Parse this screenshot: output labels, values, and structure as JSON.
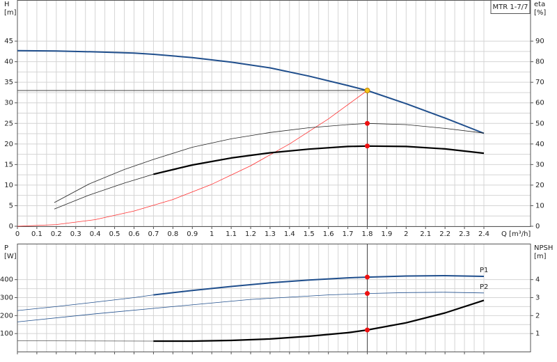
{
  "chart_data": [
    {
      "type": "line",
      "title": "MTR 1-7/7",
      "ylabel": "H",
      "yunit": "[m]",
      "y2label": "eta",
      "y2unit": "[%]",
      "xlabel": "Q [m³/h]",
      "xlim": [
        0,
        2.64
      ],
      "ylim": [
        0,
        55
      ],
      "y2lim": [
        0,
        110
      ],
      "grid": true,
      "xticks": [
        0,
        0.1,
        0.2,
        0.3,
        0.4,
        0.5,
        0.6,
        0.7,
        0.8,
        0.9,
        1,
        1.1,
        1.2,
        1.3,
        1.4,
        1.5,
        1.6,
        1.7,
        1.8,
        1.9,
        2,
        2.1,
        2.2,
        2.3,
        2.4
      ],
      "yticks": [
        0,
        5,
        10,
        15,
        20,
        25,
        30,
        35,
        40,
        45
      ],
      "y2ticks": [
        0,
        10,
        20,
        30,
        40,
        50,
        60,
        70,
        80,
        90
      ],
      "series": [
        {
          "color": "#1f4e8c",
          "width": 2,
          "x": [
            0,
            0.2,
            0.4,
            0.6,
            0.7,
            0.9,
            1.1,
            1.3,
            1.5,
            1.7,
            1.8,
            2.0,
            2.2,
            2.4
          ],
          "values": [
            42.7,
            42.6,
            42.4,
            42.1,
            41.8,
            41.0,
            39.9,
            38.5,
            36.5,
            34.2,
            33,
            29.8,
            26.3,
            22.6
          ]
        },
        {
          "color": "#ff3030",
          "width": 0.8,
          "x": [
            0,
            0.2,
            0.4,
            0.6,
            0.8,
            1.0,
            1.2,
            1.4,
            1.6,
            1.8
          ],
          "values": [
            0,
            0.4,
            1.6,
            3.7,
            6.5,
            10.2,
            14.7,
            20.0,
            26.1,
            33
          ]
        },
        {
          "color": "#222222",
          "width": 0.8,
          "axis": "y2",
          "x": [
            0.19,
            0.37,
            0.55,
            0.7,
            0.9,
            1.1,
            1.3,
            1.5,
            1.7,
            1.8,
            2.0,
            2.2,
            2.4
          ],
          "values": [
            11.5,
            20.6,
            27.6,
            32.5,
            38.4,
            42.5,
            45.6,
            47.9,
            49.4,
            50,
            49.4,
            47.6,
            45.3
          ]
        },
        {
          "color": "#222222",
          "width": 0.8,
          "axis": "y2",
          "x": [
            0.19,
            0.37,
            0.55,
            0.7
          ],
          "values": [
            8.4,
            15.2,
            21,
            25.3
          ]
        },
        {
          "color": "#000000",
          "width": 2.2,
          "axis": "y2",
          "x": [
            0.7,
            0.9,
            1.1,
            1.3,
            1.5,
            1.7,
            1.8,
            2.0,
            2.2,
            2.4
          ],
          "values": [
            25.3,
            29.8,
            33.2,
            35.7,
            37.5,
            38.8,
            39,
            38.8,
            37.6,
            35.5
          ]
        }
      ],
      "points": [
        {
          "x": 1.8,
          "value": 33,
          "color": "#f5c518"
        },
        {
          "x": 1.8,
          "value": 50,
          "axis": "y2",
          "color": "#ee1111"
        },
        {
          "x": 1.8,
          "value": 39,
          "axis": "y2",
          "color": "#ee1111"
        }
      ]
    },
    {
      "type": "line",
      "ylabel": "P",
      "yunit": "[W]",
      "y2label": "NPSH",
      "y2unit": "[m]",
      "xlim": [
        0,
        2.64
      ],
      "ylim": [
        0,
        600
      ],
      "y2lim": [
        0,
        6
      ],
      "grid": true,
      "xticks": [
        0,
        0.1,
        0.2,
        0.3,
        0.4,
        0.5,
        0.6,
        0.7,
        0.8,
        0.9,
        1,
        1.1,
        1.2,
        1.3,
        1.4,
        1.5,
        1.6,
        1.7,
        1.8,
        1.9,
        2,
        2.1,
        2.2,
        2.3,
        2.4
      ],
      "yticks": [
        100,
        200,
        300,
        400
      ],
      "y2ticks": [
        1,
        2,
        3,
        4
      ],
      "series": [
        {
          "color": "#1f4e8c",
          "width": 0.8,
          "x": [
            0,
            0.2,
            0.4,
            0.6,
            0.7
          ],
          "values": [
            228,
            250,
            275,
            300,
            315
          ]
        },
        {
          "name": "P1",
          "color": "#1f4e8c",
          "width": 2,
          "x": [
            0.7,
            0.9,
            1.1,
            1.3,
            1.5,
            1.7,
            1.8,
            2.0,
            2.2,
            2.4
          ],
          "values": [
            315,
            340,
            362,
            382,
            398,
            410,
            414,
            420,
            422,
            418
          ]
        },
        {
          "name": "P2",
          "color": "#1f4e8c",
          "width": 0.8,
          "x": [
            0,
            0.4,
            0.8,
            1.2,
            1.6,
            1.8,
            2.0,
            2.2,
            2.4
          ],
          "values": [
            165,
            210,
            250,
            290,
            315,
            323,
            328,
            330,
            326
          ]
        },
        {
          "color": "#555555",
          "width": 0.8,
          "axis": "y2",
          "x": [
            0,
            0.7
          ],
          "values": [
            0.6,
            0.58
          ]
        },
        {
          "color": "#000000",
          "width": 2.2,
          "axis": "y2",
          "x": [
            0.7,
            0.9,
            1.1,
            1.3,
            1.5,
            1.7,
            1.8,
            2.0,
            2.2,
            2.4
          ],
          "values": [
            0.58,
            0.58,
            0.62,
            0.7,
            0.85,
            1.05,
            1.2,
            1.6,
            2.15,
            2.85
          ]
        }
      ],
      "points": [
        {
          "x": 1.8,
          "value": 414,
          "color": "#ee1111"
        },
        {
          "x": 1.8,
          "value": 323,
          "color": "#ee1111"
        },
        {
          "x": 1.8,
          "value": 1.2,
          "axis": "y2",
          "color": "#ee1111"
        }
      ]
    }
  ]
}
